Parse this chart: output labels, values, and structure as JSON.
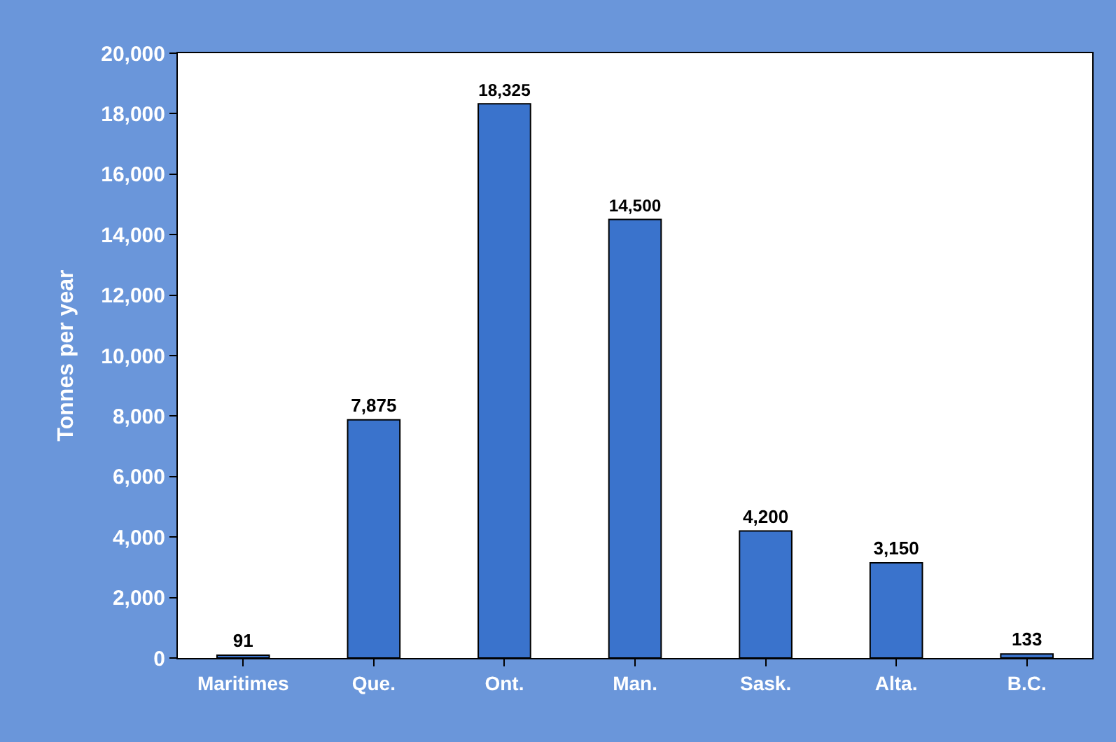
{
  "chart_data": {
    "type": "bar",
    "ylabel": "Tonnes per year",
    "categories": [
      "Maritimes",
      "Que.",
      "Ont.",
      "Man.",
      "Sask.",
      "Alta.",
      "B.C."
    ],
    "values": [
      91,
      7875,
      18325,
      14500,
      4200,
      3150,
      133
    ],
    "color": "#3a73cc",
    "ylim": [
      0,
      20000
    ],
    "yticks": [
      {
        "value": 0,
        "label": "0"
      },
      {
        "value": 2000,
        "label": "2,000"
      },
      {
        "value": 4000,
        "label": "4,000"
      },
      {
        "value": 6000,
        "label": "6,000"
      },
      {
        "value": 8000,
        "label": "8,000"
      },
      {
        "value": 10000,
        "label": "10,000"
      },
      {
        "value": 12000,
        "label": "12,000"
      },
      {
        "value": 14000,
        "label": "14,000"
      },
      {
        "value": 16000,
        "label": "16,000"
      },
      {
        "value": 18000,
        "label": "18,000"
      },
      {
        "value": 20000,
        "label": "20,000"
      }
    ],
    "value_labels": [
      "91",
      "7,875",
      "18,325",
      "14,500",
      "4,200",
      "3,150",
      "133"
    ]
  }
}
